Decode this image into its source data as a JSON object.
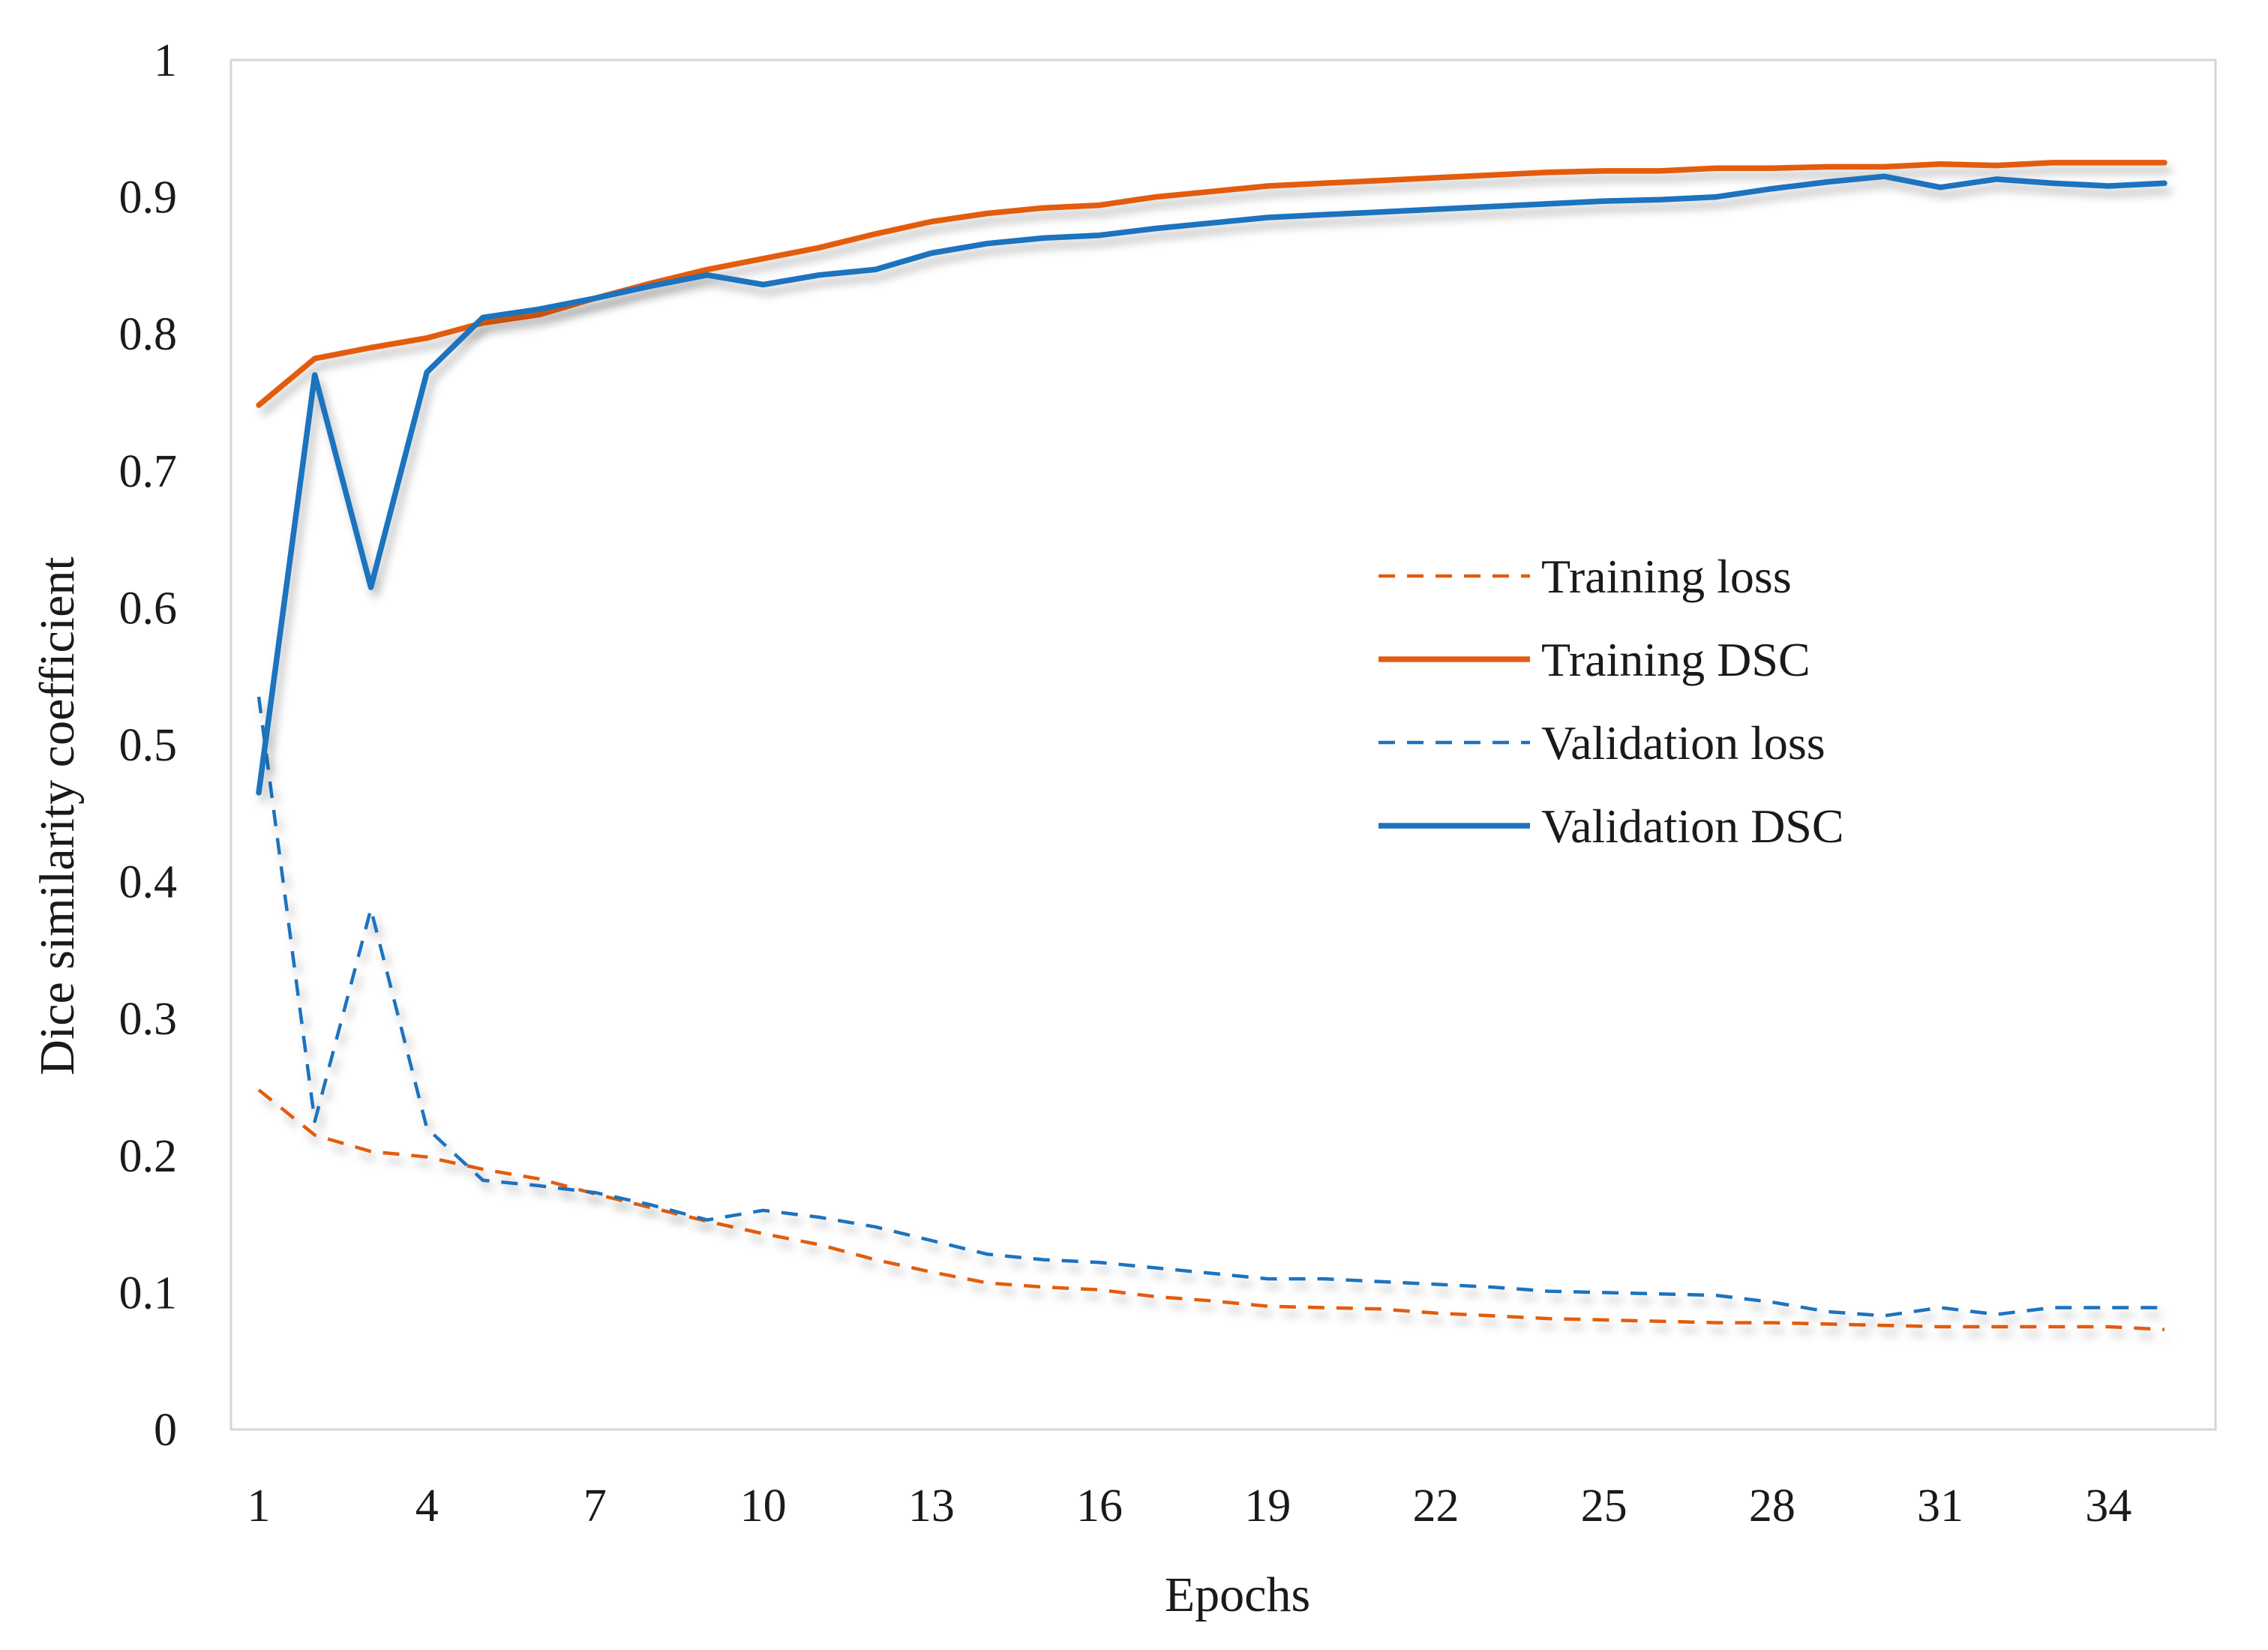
{
  "chart_data": {
    "type": "line",
    "title": "",
    "xlabel": "Epochs",
    "ylabel": "Dice similarity coefficient",
    "xlim": [
      1,
      35
    ],
    "ylim": [
      0,
      1
    ],
    "xticks": [
      1,
      4,
      7,
      10,
      13,
      16,
      19,
      22,
      25,
      28,
      31,
      34
    ],
    "xtick_labels": [
      "1",
      "4",
      "7",
      "10",
      "13",
      "16",
      "19",
      "22",
      "25",
      "28",
      "31",
      "34"
    ],
    "yticks": [
      0,
      0.1,
      0.2,
      0.3,
      0.4,
      0.5,
      0.6,
      0.7,
      0.8,
      0.9,
      1
    ],
    "ytick_labels": [
      "0",
      "0.1",
      "0.2",
      "0.3",
      "0.4",
      "0.5",
      "0.6",
      "0.7",
      "0.8",
      "0.9",
      "1"
    ],
    "grid": false,
    "legend_position": "center-right",
    "x": [
      1,
      2,
      3,
      4,
      5,
      6,
      7,
      8,
      9,
      10,
      11,
      12,
      13,
      14,
      15,
      16,
      17,
      18,
      19,
      20,
      21,
      22,
      23,
      24,
      25,
      26,
      27,
      28,
      29,
      30,
      31,
      32,
      33,
      34,
      35
    ],
    "series": [
      {
        "name": "Training loss",
        "color": "#E35B10",
        "dash": "dashed",
        "values": [
          0.248,
          0.215,
          0.203,
          0.199,
          0.19,
          0.183,
          0.172,
          0.162,
          0.152,
          0.143,
          0.135,
          0.124,
          0.115,
          0.107,
          0.104,
          0.102,
          0.097,
          0.094,
          0.09,
          0.089,
          0.088,
          0.085,
          0.083,
          0.081,
          0.08,
          0.079,
          0.078,
          0.078,
          0.077,
          0.076,
          0.075,
          0.075,
          0.075,
          0.075,
          0.073
        ]
      },
      {
        "name": "Training DSC",
        "color": "#E35B10",
        "dash": "solid",
        "values": [
          0.748,
          0.782,
          0.79,
          0.797,
          0.808,
          0.814,
          0.826,
          0.837,
          0.847,
          0.855,
          0.863,
          0.873,
          0.882,
          0.888,
          0.892,
          0.894,
          0.9,
          0.904,
          0.908,
          0.91,
          0.912,
          0.914,
          0.916,
          0.918,
          0.919,
          0.919,
          0.921,
          0.921,
          0.922,
          0.922,
          0.924,
          0.923,
          0.925,
          0.925,
          0.925
        ]
      },
      {
        "name": "Validation loss",
        "color": "#1E73BE",
        "dash": "dashed",
        "values": [
          0.535,
          0.225,
          0.38,
          0.22,
          0.182,
          0.178,
          0.173,
          0.164,
          0.153,
          0.16,
          0.155,
          0.148,
          0.138,
          0.128,
          0.124,
          0.122,
          0.118,
          0.114,
          0.11,
          0.11,
          0.108,
          0.106,
          0.104,
          0.101,
          0.1,
          0.099,
          0.098,
          0.093,
          0.086,
          0.083,
          0.089,
          0.084,
          0.089,
          0.089,
          0.089
        ]
      },
      {
        "name": "Validation DSC",
        "color": "#1E73BE",
        "dash": "solid",
        "values": [
          0.465,
          0.77,
          0.615,
          0.772,
          0.812,
          0.818,
          0.826,
          0.835,
          0.843,
          0.836,
          0.843,
          0.847,
          0.859,
          0.866,
          0.87,
          0.872,
          0.877,
          0.881,
          0.885,
          0.887,
          0.889,
          0.891,
          0.893,
          0.895,
          0.897,
          0.898,
          0.9,
          0.906,
          0.911,
          0.915,
          0.907,
          0.913,
          0.91,
          0.908,
          0.91
        ]
      }
    ]
  }
}
